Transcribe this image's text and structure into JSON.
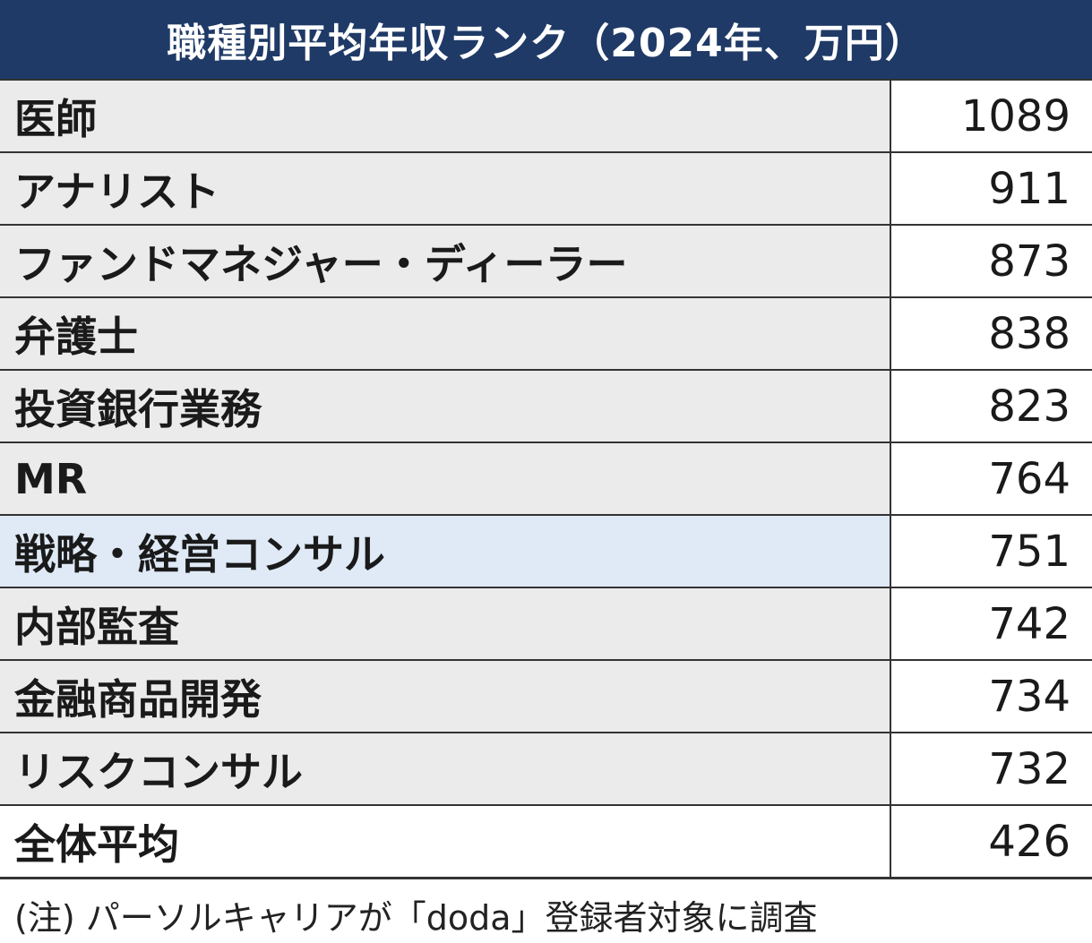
{
  "chart_data": {
    "type": "table",
    "title": "職種別平均年収ランク（2024年、万円）",
    "rows": [
      {
        "label": "医師",
        "value": "1089"
      },
      {
        "label": "アナリスト",
        "value": "911"
      },
      {
        "label": "ファンドマネジャー・ディーラー",
        "value": "873"
      },
      {
        "label": "弁護士",
        "value": "838"
      },
      {
        "label": "投資銀行業務",
        "value": "823"
      },
      {
        "label": "MR",
        "value": "764"
      },
      {
        "label": "戦略・経営コンサル",
        "value": "751"
      },
      {
        "label": "内部監査",
        "value": "742"
      },
      {
        "label": "金融商品開発",
        "value": "734"
      },
      {
        "label": "リスクコンサル",
        "value": "732"
      }
    ],
    "total": {
      "label": "全体平均",
      "value": "426"
    },
    "highlighted_row": 6,
    "note": "(注) パーソルキャリアが「doda」登録者対象に調査"
  },
  "colors": {
    "header_background": "#1f3a66",
    "label_background": "#ebebeb",
    "highlight_background": "#dfeaf6",
    "border": "#333333"
  }
}
